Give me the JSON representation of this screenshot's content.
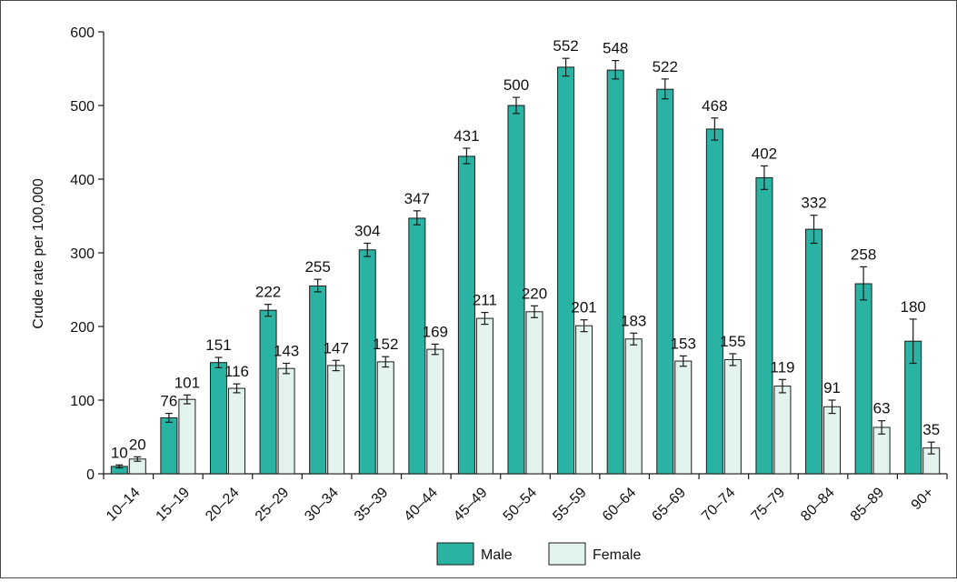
{
  "chart_data": {
    "type": "bar",
    "title": "",
    "xlabel": "",
    "ylabel": "Crude rate per 100,000",
    "ylim": [
      0,
      600
    ],
    "yticks": [
      0,
      100,
      200,
      300,
      400,
      500,
      600
    ],
    "grid": false,
    "legend_position": "bottom-center",
    "categories": [
      "10–14",
      "15–19",
      "20–24",
      "25–29",
      "30–34",
      "35–39",
      "40–44",
      "45–49",
      "50–54",
      "55–59",
      "60–64",
      "65–69",
      "70–74",
      "75–79",
      "80–84",
      "85–89",
      "90+"
    ],
    "series": [
      {
        "name": "Male",
        "color": "#2ab3a3",
        "values": [
          10,
          76,
          151,
          222,
          255,
          304,
          347,
          431,
          500,
          552,
          548,
          522,
          468,
          402,
          332,
          258,
          180
        ],
        "error_low": [
          8,
          70,
          144,
          214,
          247,
          295,
          338,
          421,
          489,
          540,
          536,
          509,
          453,
          386,
          313,
          236,
          150
        ],
        "error_high": [
          12,
          82,
          158,
          230,
          264,
          313,
          357,
          442,
          511,
          564,
          561,
          536,
          483,
          418,
          351,
          281,
          210
        ]
      },
      {
        "name": "Female",
        "color": "#e3f4ef",
        "values": [
          20,
          101,
          116,
          143,
          147,
          152,
          169,
          211,
          220,
          201,
          183,
          153,
          155,
          119,
          91,
          63,
          35
        ],
        "error_low": [
          17,
          95,
          110,
          136,
          140,
          145,
          162,
          203,
          212,
          193,
          175,
          146,
          147,
          110,
          82,
          54,
          27
        ],
        "error_high": [
          23,
          107,
          122,
          150,
          154,
          159,
          176,
          219,
          228,
          209,
          191,
          160,
          163,
          128,
          100,
          72,
          43
        ]
      }
    ]
  }
}
